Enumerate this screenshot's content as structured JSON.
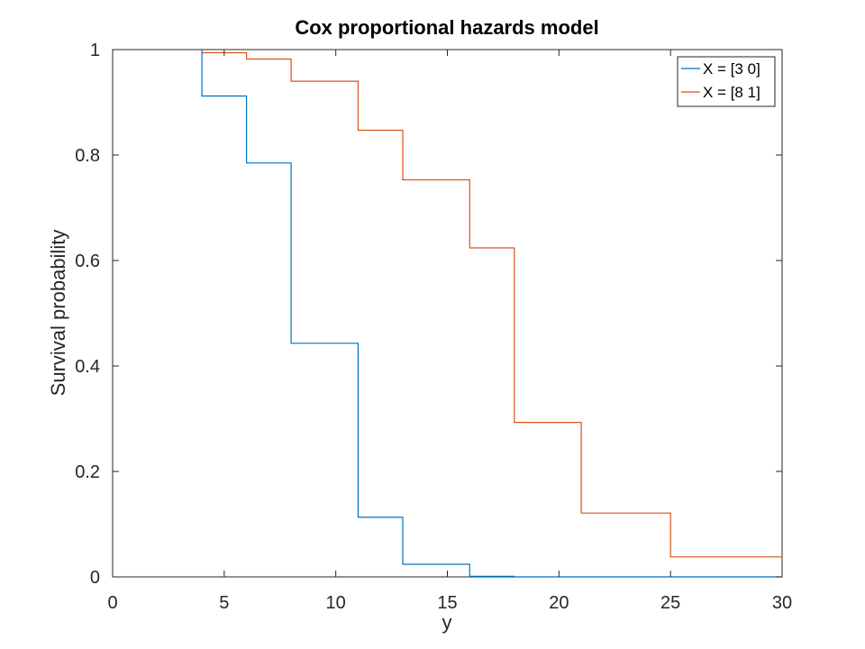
{
  "chart_data": {
    "type": "line",
    "step": true,
    "title": "Cox proportional hazards model",
    "xlabel": "y",
    "ylabel": "Survival probability",
    "xlim": [
      0,
      30
    ],
    "ylim": [
      0,
      1
    ],
    "xticks": [
      0,
      5,
      10,
      15,
      20,
      25,
      30
    ],
    "xtick_labels": [
      "0",
      "5",
      "10",
      "15",
      "20",
      "25",
      "30"
    ],
    "yticks": [
      0,
      0.2,
      0.4,
      0.6,
      0.8,
      1
    ],
    "ytick_labels": [
      "0",
      "0.2",
      "0.4",
      "0.6",
      "0.8",
      "1"
    ],
    "grid": false,
    "legend_position": "top-right",
    "series": [
      {
        "name": "X = [3 0]",
        "color": "#0072BD",
        "x": [
          4,
          4,
          6,
          8,
          11,
          13,
          16,
          18,
          30
        ],
        "y": [
          1.0,
          0.912,
          0.785,
          0.443,
          0.113,
          0.024,
          0.001,
          0.0,
          0.0
        ]
      },
      {
        "name": "X = [8 1]",
        "color": "#D95319",
        "x": [
          4,
          6,
          8,
          11,
          13,
          16,
          18,
          21,
          25,
          30
        ],
        "y": [
          0.994,
          0.982,
          0.94,
          0.847,
          0.753,
          0.624,
          0.293,
          0.121,
          0.038,
          0.038
        ]
      }
    ]
  }
}
